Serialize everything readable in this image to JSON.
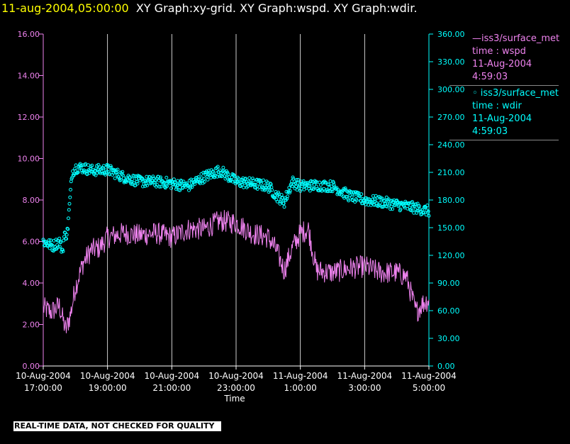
{
  "header": {
    "timestamp": "11-aug-2004,05:00:00",
    "graphs": "XY Graph:xy-grid.  XY Graph:wspd.  XY Graph:wdir."
  },
  "legend": {
    "wspd": {
      "line1": "—iss3/surface_met",
      "line2": "time : wspd",
      "line3": "11-Aug-2004",
      "line4": "4:59:03"
    },
    "wdir": {
      "line1": "◦ iss3/surface_met",
      "line2": "time : wdir",
      "line3": "11-Aug-2004",
      "line4": "4:59:03"
    }
  },
  "notice": "REAL-TIME DATA, NOT CHECKED FOR QUALITY",
  "colors": {
    "wspd": "#ee82ee",
    "wdir": "#00ffff",
    "grid": "#ffffff",
    "axis_left": "#ee82ee",
    "axis_right": "#00ffff"
  },
  "chart_data": {
    "type": "line",
    "xlabel": "Time",
    "x_range_hours": [
      0,
      12
    ],
    "x_ticks": [
      {
        "t": 0,
        "line1": "10-Aug-2004",
        "line2": "17:00:00"
      },
      {
        "t": 2,
        "line1": "10-Aug-2004",
        "line2": "19:00:00"
      },
      {
        "t": 4,
        "line1": "10-Aug-2004",
        "line2": "21:00:00"
      },
      {
        "t": 6,
        "line1": "10-Aug-2004",
        "line2": "23:00:00"
      },
      {
        "t": 8,
        "line1": "11-Aug-2004",
        "line2": "1:00:00"
      },
      {
        "t": 10,
        "line1": "11-Aug-2004",
        "line2": "3:00:00"
      },
      {
        "t": 12,
        "line1": "11-Aug-2004",
        "line2": "5:00:00"
      }
    ],
    "y_left": {
      "ylim": [
        0,
        16
      ],
      "ticks": [
        "0.00",
        "2.00",
        "4.00",
        "6.00",
        "8.00",
        "10.00",
        "12.00",
        "14.00",
        "16.00"
      ]
    },
    "y_right": {
      "ylim": [
        0,
        360
      ],
      "ticks": [
        "0.00",
        "30.00",
        "60.00",
        "90.00",
        "120.00",
        "150.00",
        "180.00",
        "210.00",
        "240.00",
        "270.00",
        "300.00",
        "330.00",
        "360.00"
      ]
    },
    "grid": "vertical",
    "series": [
      {
        "name": "iss3/surface_met time : wspd",
        "axis": "left",
        "style": "line",
        "t": [
          0.0,
          0.25,
          0.5,
          0.7,
          0.85,
          1.0,
          1.25,
          1.5,
          1.75,
          2.0,
          2.5,
          3.0,
          3.5,
          4.0,
          4.5,
          5.0,
          5.5,
          6.0,
          6.5,
          7.0,
          7.25,
          7.5,
          7.75,
          8.0,
          8.25,
          8.5,
          9.0,
          9.5,
          10.0,
          10.5,
          11.0,
          11.3,
          11.6,
          11.8,
          12.0
        ],
        "values": [
          2.8,
          2.6,
          2.9,
          1.7,
          2.5,
          3.8,
          5.0,
          5.6,
          5.7,
          6.2,
          6.4,
          6.3,
          6.4,
          6.2,
          6.6,
          6.6,
          7.0,
          6.9,
          6.4,
          6.2,
          5.6,
          4.6,
          5.7,
          6.4,
          6.6,
          4.6,
          4.5,
          4.7,
          4.8,
          4.5,
          4.5,
          4.3,
          2.6,
          3.0,
          3.2
        ],
        "noise": 0.55
      },
      {
        "name": "iss3/surface_met time : wdir",
        "axis": "right",
        "style": "circles",
        "t": [
          0.0,
          0.3,
          0.5,
          0.6,
          0.65,
          0.75,
          0.9,
          1.0,
          1.25,
          1.5,
          2.0,
          2.5,
          3.0,
          3.5,
          4.0,
          4.5,
          5.0,
          5.5,
          6.0,
          6.5,
          7.0,
          7.25,
          7.5,
          7.75,
          8.0,
          8.5,
          9.0,
          9.5,
          10.0,
          10.5,
          11.0,
          11.5,
          12.0
        ],
        "values": [
          135,
          130,
          135,
          125,
          140,
          145,
          210,
          215,
          215,
          212,
          213,
          205,
          200,
          200,
          198,
          195,
          205,
          212,
          200,
          198,
          195,
          185,
          178,
          200,
          195,
          196,
          195,
          185,
          180,
          178,
          175,
          172,
          168
        ],
        "noise": 6
      }
    ]
  }
}
